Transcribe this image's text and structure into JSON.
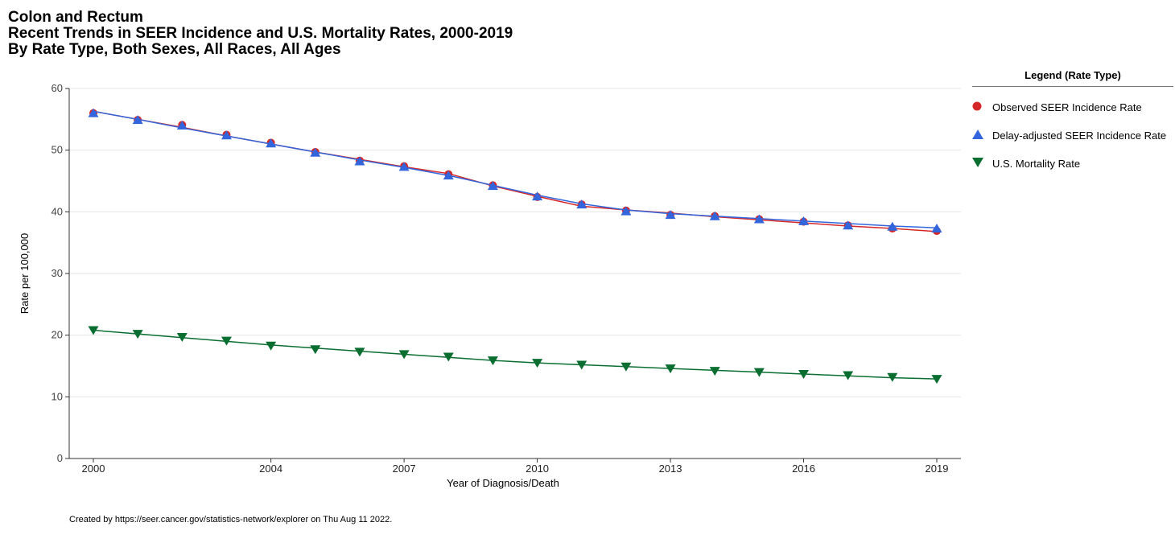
{
  "titles": {
    "line1": "Colon and Rectum",
    "line2": "Recent Trends in SEER Incidence and U.S. Mortality Rates, 2000-2019",
    "line3": "By Rate Type, Both Sexes, All Races, All Ages"
  },
  "legend": {
    "title": "Legend (Rate Type)",
    "items": [
      {
        "label": "Observed SEER Incidence Rate",
        "color": "#d62728",
        "marker": "circle"
      },
      {
        "label": "Delay-adjusted SEER Incidence Rate",
        "color": "#3366dd",
        "marker": "triangle-up"
      },
      {
        "label": "U.S. Mortality Rate",
        "color": "#0a6e31",
        "marker": "triangle-down"
      }
    ]
  },
  "footer": "Created by https://seer.cancer.gov/statistics-network/explorer on Thu Aug 11 2022.",
  "chart_data": {
    "type": "line",
    "xlabel": "Year of Diagnosis/Death",
    "ylabel": "Rate per 100,000",
    "xlim": [
      2000,
      2019
    ],
    "ylim": [
      0,
      60
    ],
    "x_ticks": [
      2000,
      2004,
      2007,
      2010,
      2013,
      2016,
      2019
    ],
    "y_ticks": [
      0,
      10,
      20,
      30,
      40,
      50,
      60
    ],
    "grid": true,
    "legend_position": "right",
    "x": [
      2000,
      2001,
      2002,
      2003,
      2004,
      2005,
      2006,
      2007,
      2008,
      2009,
      2010,
      2011,
      2012,
      2013,
      2014,
      2015,
      2016,
      2017,
      2018,
      2019
    ],
    "series": [
      {
        "name": "Observed SEER Incidence Rate",
        "color": "#d62728",
        "marker": "circle",
        "points": [
          56.0,
          54.9,
          54.1,
          52.5,
          51.2,
          49.7,
          48.3,
          47.4,
          46.1,
          44.3,
          42.4,
          41.2,
          40.2,
          39.5,
          39.3,
          38.8,
          38.4,
          37.8,
          37.3,
          36.9
        ],
        "trend": [
          56.3,
          55.0,
          53.7,
          52.3,
          51.0,
          49.7,
          48.5,
          47.3,
          46.2,
          44.2,
          42.5,
          40.9,
          40.3,
          39.8,
          39.2,
          38.7,
          38.2,
          37.7,
          37.3,
          36.8
        ]
      },
      {
        "name": "Delay-adjusted SEER Incidence Rate",
        "color": "#3366dd",
        "marker": "triangle-up",
        "points": [
          56.0,
          54.9,
          54.0,
          52.4,
          51.1,
          49.6,
          48.2,
          47.3,
          45.9,
          44.2,
          42.5,
          41.2,
          40.1,
          39.5,
          39.3,
          38.8,
          38.5,
          37.8,
          37.6,
          37.3
        ],
        "trend": [
          56.3,
          55.0,
          53.6,
          52.3,
          51.0,
          49.7,
          48.4,
          47.2,
          45.9,
          44.3,
          42.7,
          41.3,
          40.3,
          39.7,
          39.3,
          38.9,
          38.5,
          38.1,
          37.7,
          37.4
        ]
      },
      {
        "name": "U.S. Mortality Rate",
        "color": "#0a6e31",
        "marker": "triangle-down",
        "points": [
          20.8,
          20.2,
          19.7,
          19.1,
          18.3,
          17.7,
          17.3,
          16.9,
          16.5,
          15.9,
          15.5,
          15.2,
          14.9,
          14.6,
          14.2,
          14.0,
          13.7,
          13.5,
          13.2,
          12.9
        ],
        "trend": [
          20.8,
          20.2,
          19.6,
          19.0,
          18.4,
          17.9,
          17.4,
          16.9,
          16.4,
          15.9,
          15.5,
          15.2,
          14.9,
          14.6,
          14.3,
          14.0,
          13.7,
          13.4,
          13.1,
          12.9
        ]
      }
    ]
  }
}
